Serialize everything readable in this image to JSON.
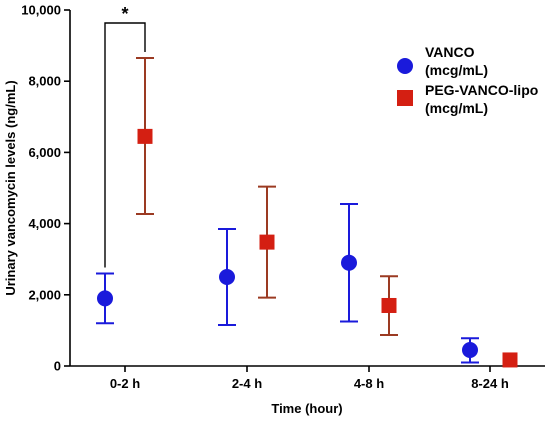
{
  "chart_data": {
    "type": "scatter",
    "title": "",
    "xlabel": "Time (hour)",
    "ylabel": "Urinary vancomycin levels (ng/mL)",
    "categories": [
      "0-2 h",
      "2-4 h",
      "4-8 h",
      "8-24 h"
    ],
    "ylim": [
      0,
      10000
    ],
    "yticks": [
      "0",
      "2,000",
      "4,000",
      "6,000",
      "8,000",
      "10,000"
    ],
    "ytick_values": [
      0,
      2000,
      4000,
      6000,
      8000,
      10000
    ],
    "grid": false,
    "legend_position": "top-right",
    "series": [
      {
        "name_lines": [
          "VANCO",
          "(mcg/mL)"
        ],
        "marker": "circle",
        "color": "#1a1adb",
        "error_color": "#1a1adb",
        "values": [
          1900,
          2500,
          2900,
          450
        ],
        "error_low": [
          1200,
          1150,
          1250,
          100
        ],
        "error_high": [
          2600,
          3850,
          4550,
          780
        ]
      },
      {
        "name_lines": [
          "PEG-VANCO-lipo",
          "(mcg/mL)"
        ],
        "marker": "square",
        "color": "#d41f12",
        "error_color": "#9b3a22",
        "values": [
          6450,
          3480,
          1700,
          170
        ],
        "error_low": [
          4270,
          1920,
          870,
          170
        ],
        "error_high": [
          8650,
          5040,
          2520,
          170
        ]
      }
    ],
    "annotations": [
      {
        "text": "*",
        "between_categories": [
          0,
          0
        ],
        "comparison": "VANCO vs PEG-VANCO-lipo at 0-2 h"
      }
    ]
  }
}
